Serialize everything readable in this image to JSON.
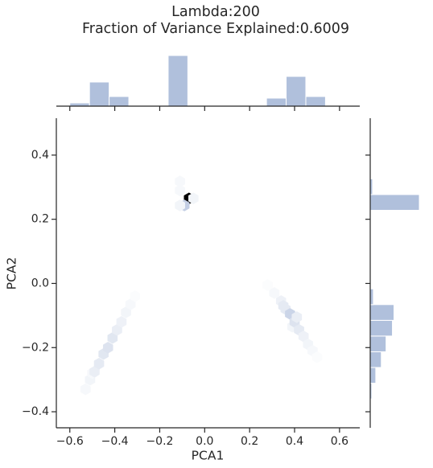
{
  "chart_data": {
    "type": "hexbin",
    "title": [
      "Lambda:200",
      "Fraction of Variance Explained:0.6009"
    ],
    "xlabel": "PCA1",
    "ylabel": "PCA2",
    "xlim": [
      -0.66,
      0.69
    ],
    "ylim": [
      -0.45,
      0.515
    ],
    "xticks": [
      {
        "value": -0.6,
        "label": "−0.6"
      },
      {
        "value": -0.4,
        "label": "−0.4"
      },
      {
        "value": -0.2,
        "label": "−0.2"
      },
      {
        "value": 0,
        "label": "0.0"
      },
      {
        "value": 0.2,
        "label": "0.2"
      },
      {
        "value": 0.4,
        "label": "0.4"
      },
      {
        "value": 0.6,
        "label": "0.6"
      }
    ],
    "yticks": [
      {
        "value": -0.4,
        "label": "−0.4"
      },
      {
        "value": -0.2,
        "label": "−0.2"
      },
      {
        "value": 0,
        "label": "0.0"
      },
      {
        "value": 0.2,
        "label": "0.2"
      },
      {
        "value": 0.4,
        "label": "0.4"
      }
    ],
    "cmap": [
      "#ffffff",
      "#a9b9d8",
      "#5a6f96",
      "#000000"
    ],
    "hex": {
      "x": [
        -0.07,
        -0.09,
        -0.11,
        -0.11,
        -0.05,
        -0.11,
        -0.53,
        -0.51,
        -0.5,
        -0.49,
        -0.47,
        -0.45,
        -0.43,
        -0.41,
        -0.39,
        -0.37,
        -0.35,
        -0.33,
        -0.31,
        0.28,
        0.31,
        0.34,
        0.35,
        0.36,
        0.38,
        0.39,
        0.4,
        0.41,
        0.42,
        0.44,
        0.46,
        0.48,
        0.5
      ],
      "y": [
        0.265,
        0.243,
        0.243,
        0.318,
        0.265,
        0.29,
        -0.33,
        -0.3,
        -0.28,
        -0.275,
        -0.25,
        -0.22,
        -0.2,
        -0.17,
        -0.145,
        -0.12,
        -0.09,
        -0.065,
        -0.04,
        -0.005,
        -0.03,
        -0.055,
        -0.07,
        -0.08,
        -0.095,
        -0.135,
        -0.12,
        -0.105,
        -0.145,
        -0.165,
        -0.19,
        -0.21,
        -0.23
      ],
      "values": [
        60,
        14,
        3,
        2,
        3,
        2,
        2,
        3,
        2,
        5,
        6,
        7,
        8,
        7,
        5,
        4,
        3,
        2,
        1,
        1,
        2,
        4,
        6,
        6,
        12,
        3,
        8,
        5,
        6,
        4,
        3,
        2,
        1
      ]
    },
    "top_hist": {
      "color": "#b0c0dc",
      "bins": [
        -0.6,
        -0.5125,
        -0.425,
        -0.3375,
        -0.25,
        -0.1625,
        -0.075,
        0.0125,
        0.1,
        0.1875,
        0.275,
        0.3625,
        0.45,
        0.5375
      ],
      "counts": [
        4,
        30,
        12,
        1,
        0,
        63,
        0,
        0,
        0,
        0,
        10,
        37,
        12
      ],
      "ylim": [
        0,
        65
      ]
    },
    "right_hist": {
      "color": "#b0c0dc",
      "bins": [
        -0.36,
        -0.311,
        -0.262,
        -0.213,
        -0.164,
        -0.115,
        -0.066,
        -0.017,
        0.032,
        0.081,
        0.13,
        0.179,
        0.228,
        0.277,
        0.326
      ],
      "counts": [
        2,
        7,
        14,
        20,
        28,
        30,
        4,
        0,
        0,
        0,
        0,
        0,
        62,
        3
      ],
      "xlim": [
        0,
        63
      ]
    }
  }
}
